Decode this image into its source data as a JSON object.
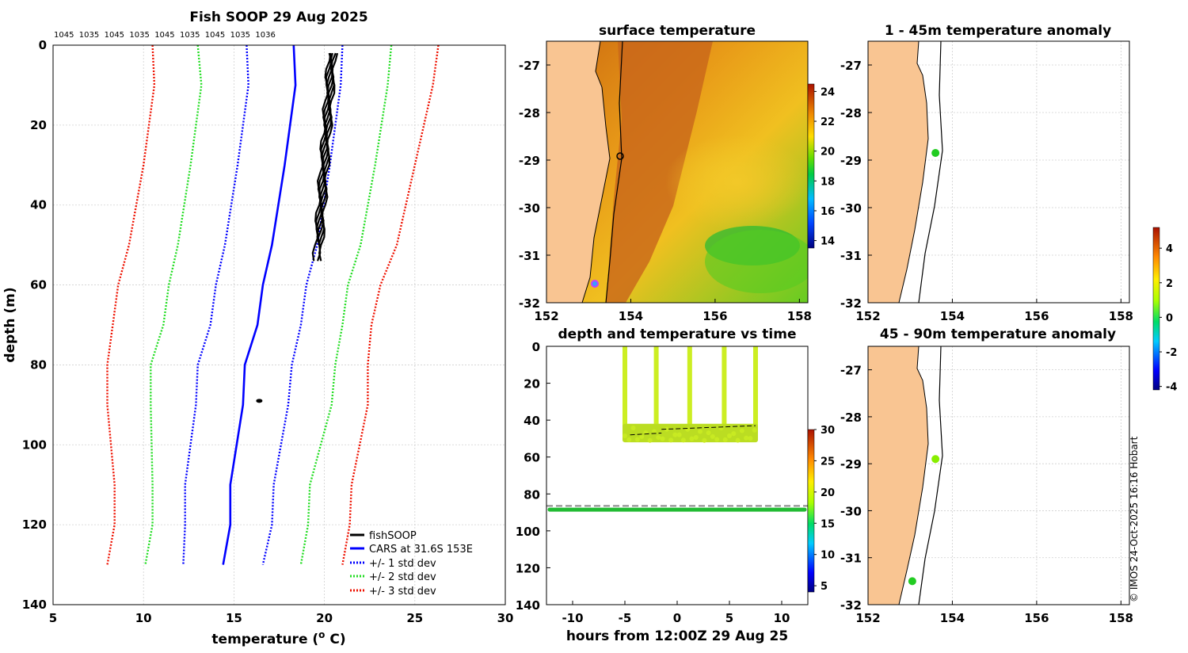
{
  "colors": {
    "land": "#f9c592",
    "cars": "#0000ff",
    "std1": "#0000ff",
    "std2": "#22dd22",
    "std3": "#ee1100",
    "fish": "#000000",
    "marker": "#c040ff"
  },
  "chart_data": [
    {
      "type": "line",
      "title": "Fish SOOP 29 Aug 2025",
      "top_labels": [
        "1045",
        "1035",
        "1045",
        "1035",
        "1045",
        "1035",
        "1045",
        "1035",
        "1036"
      ],
      "xlabel": "temperature (",
      "xlabel_sup": "o",
      "xlabel_tail": " C)",
      "ylabel": "depth (m)",
      "xlim": [
        5,
        30
      ],
      "ylim": [
        140,
        0
      ],
      "xticks": [
        "5",
        "10",
        "15",
        "20",
        "25",
        "30"
      ],
      "yticks": [
        "0",
        "20",
        "40",
        "60",
        "80",
        "100",
        "120",
        "140"
      ],
      "legend": [
        "fishSOOP",
        "CARS at 31.6S 153E",
        "+/- 1 std dev",
        "+/- 2 std dev",
        "+/- 3 std dev"
      ],
      "series": [
        {
          "name": "CARS at 31.6S 153E",
          "depth": [
            0,
            10,
            30,
            50,
            60,
            70,
            80,
            90,
            110,
            120,
            130
          ],
          "temp": [
            18.3,
            18.4,
            17.8,
            17.1,
            16.6,
            16.3,
            15.6,
            15.5,
            14.8,
            14.8,
            14.4
          ]
        },
        {
          "name": "+1 std dev",
          "depth": [
            0,
            10,
            30,
            50,
            60,
            70,
            80,
            90,
            110,
            120,
            130
          ],
          "temp": [
            21.0,
            20.9,
            20.3,
            19.6,
            19.0,
            18.7,
            18.2,
            18.0,
            17.2,
            17.1,
            16.6
          ]
        },
        {
          "name": "-1 std dev",
          "depth": [
            0,
            10,
            30,
            50,
            60,
            70,
            80,
            90,
            110,
            120,
            130
          ],
          "temp": [
            15.7,
            15.8,
            15.2,
            14.5,
            14.0,
            13.7,
            13.0,
            12.9,
            12.3,
            12.3,
            12.2
          ]
        },
        {
          "name": "+2 std dev",
          "depth": [
            0,
            10,
            30,
            50,
            60,
            70,
            80,
            90,
            110,
            120,
            130
          ],
          "temp": [
            23.7,
            23.5,
            22.8,
            22.0,
            21.3,
            21.0,
            20.6,
            20.4,
            19.2,
            19.1,
            18.7
          ]
        },
        {
          "name": "-2 std dev",
          "depth": [
            0,
            10,
            30,
            50,
            60,
            70,
            80,
            90,
            110,
            120,
            130
          ],
          "temp": [
            13.0,
            13.2,
            12.6,
            11.9,
            11.4,
            11.1,
            10.4,
            10.4,
            10.5,
            10.5,
            10.1
          ]
        },
        {
          "name": "+3 std dev",
          "depth": [
            0,
            10,
            30,
            50,
            60,
            70,
            80,
            90,
            110,
            120,
            130
          ],
          "temp": [
            26.3,
            26.0,
            25.0,
            24.0,
            23.1,
            22.6,
            22.4,
            22.4,
            21.5,
            21.4,
            21.0
          ]
        },
        {
          "name": "-3 std dev",
          "depth": [
            0,
            10,
            30,
            50,
            60,
            70,
            80,
            90,
            110,
            120,
            130
          ],
          "temp": [
            10.5,
            10.6,
            10.0,
            9.2,
            8.6,
            8.3,
            8.0,
            8.0,
            8.4,
            8.4,
            8.0
          ]
        },
        {
          "name": "fishSOOP",
          "depth_range": [
            2,
            54
          ],
          "temp_range": [
            19.5,
            20.7
          ],
          "extra_point": {
            "temp": 16.4,
            "depth": 89
          }
        }
      ]
    },
    {
      "type": "heatmap",
      "title": "surface temperature",
      "xticks": [
        "152",
        "154",
        "156",
        "158"
      ],
      "yticks": [
        "-27",
        "-28",
        "-29",
        "-30",
        "-31",
        "-32"
      ],
      "xlim": [
        152,
        158.2
      ],
      "ylim": [
        -32,
        -26.5
      ],
      "colorbar_ticks": [
        "24",
        "22",
        "20",
        "18",
        "16",
        "14"
      ],
      "colorbar_range": [
        13.5,
        24.5
      ]
    },
    {
      "type": "scatter",
      "title": "depth and temperature vs time",
      "xlabel": "hours from 12:00Z 29 Aug 25",
      "xticks": [
        "-10",
        "-5",
        "0",
        "5",
        "10"
      ],
      "yticks": [
        "0",
        "20",
        "40",
        "60",
        "80",
        "100",
        "120",
        "140"
      ],
      "xlim": [
        -12.5,
        12.5
      ],
      "ylim": [
        140,
        0
      ],
      "colorbar_ticks": [
        "30",
        "25",
        "20",
        "15",
        "10",
        "5"
      ],
      "colorbar_range": [
        4,
        30
      ],
      "dive_times": [
        -5,
        -2,
        1.2,
        4.5,
        7.5
      ],
      "near_surface_depth_range": [
        42,
        52
      ],
      "deep_line_depth": 88.5,
      "dashed_line_depth": 86.5
    },
    {
      "type": "scatter",
      "title": "1 - 45m temperature anomaly",
      "xticks": [
        "152",
        "154",
        "156",
        "158"
      ],
      "yticks": [
        "-27",
        "-28",
        "-29",
        "-30",
        "-31",
        "-32"
      ],
      "xlim": [
        152,
        158.2
      ],
      "ylim": [
        -32,
        -26.5
      ],
      "points": [
        {
          "lon": 153.6,
          "lat": -28.85,
          "anomaly": 0.2
        }
      ]
    },
    {
      "type": "scatter",
      "title": "45 - 90m temperature anomaly",
      "xticks": [
        "152",
        "154",
        "156",
        "158"
      ],
      "yticks": [
        "-27",
        "-28",
        "-29",
        "-30",
        "-31",
        "-32"
      ],
      "xlim": [
        152,
        158.2
      ],
      "ylim": [
        -32,
        -26.5
      ],
      "points": [
        {
          "lon": 153.6,
          "lat": -28.9,
          "anomaly": 1.5
        },
        {
          "lon": 153.05,
          "lat": -31.5,
          "anomaly": 0.1
        }
      ],
      "colorbar_ticks": [
        "4",
        "2",
        "0",
        "-2",
        "-4"
      ],
      "colorbar_range": [
        -4.2,
        5.2
      ]
    }
  ],
  "footer": {
    "copyright": "© IMOS 24-Oct-2025 16:16 Hobart"
  }
}
